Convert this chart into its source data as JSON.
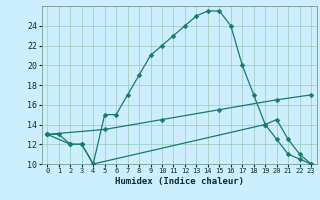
{
  "xlabel": "Humidex (Indice chaleur)",
  "background_color": "#cceeff",
  "grid_color": "#99ccbb",
  "line_color": "#1a7a6a",
  "xlim": [
    -0.5,
    23.5
  ],
  "ylim": [
    10,
    26
  ],
  "yticks": [
    10,
    12,
    14,
    16,
    18,
    20,
    22,
    24
  ],
  "xticks": [
    0,
    1,
    2,
    3,
    4,
    5,
    6,
    7,
    8,
    9,
    10,
    11,
    12,
    13,
    14,
    15,
    16,
    17,
    18,
    19,
    20,
    21,
    22,
    23
  ],
  "curve1_x": [
    0,
    1,
    2,
    3,
    4,
    5,
    6,
    7,
    8,
    9,
    10,
    11,
    12,
    13,
    14,
    15,
    16,
    17,
    18,
    19,
    20,
    21,
    22,
    23
  ],
  "curve1_y": [
    13,
    13,
    12,
    12,
    10,
    15,
    15,
    17,
    19,
    21,
    22,
    23,
    24,
    25,
    25.5,
    25.5,
    24,
    20,
    17,
    14,
    12.5,
    11,
    10.5,
    10
  ],
  "curve2_x": [
    0,
    2,
    3,
    4,
    19,
    20,
    21,
    22,
    23
  ],
  "curve2_y": [
    13,
    12,
    12,
    10,
    14,
    14.5,
    12.5,
    11,
    10
  ],
  "curve3_x": [
    0,
    5,
    10,
    15,
    20,
    23
  ],
  "curve3_y": [
    13,
    13.5,
    14.5,
    15.5,
    16.5,
    17
  ],
  "markersize": 2.5
}
